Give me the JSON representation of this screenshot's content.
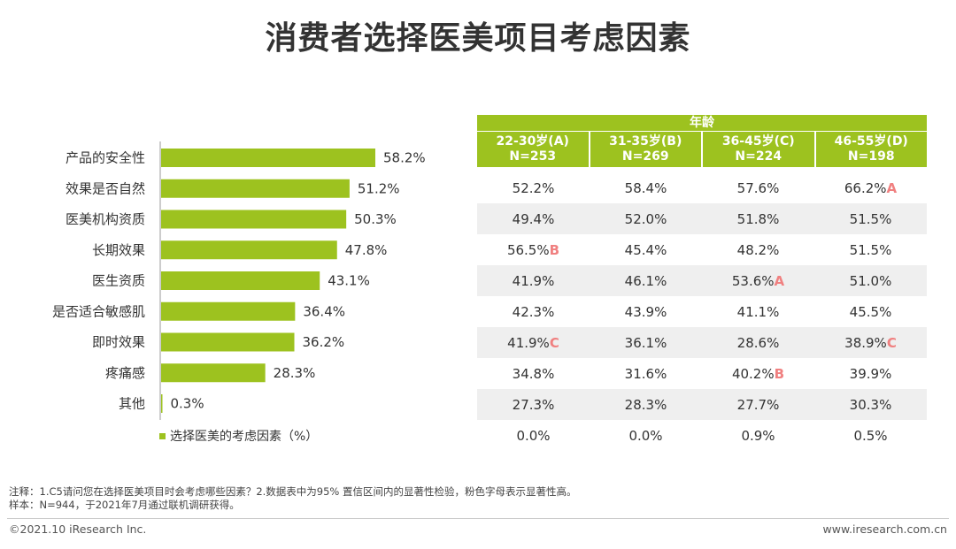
{
  "title": "消费者选择医美项目考虑因素",
  "chart_data": {
    "type": "bar",
    "orientation": "horizontal",
    "title": "消费者选择医美项目考虑因素",
    "categories": [
      "产品的安全性",
      "效果是否自然",
      "医美机构资质",
      "长期效果",
      "医生资质",
      "是否适合敏感肌",
      "即时效果",
      "疼痛感",
      "其他"
    ],
    "series": [
      {
        "name": "选择医美的考虑因素（%）",
        "values": [
          58.2,
          51.2,
          50.3,
          47.8,
          43.1,
          36.4,
          36.2,
          28.3,
          0.3
        ],
        "color": "#9dc21f"
      }
    ],
    "value_labels": [
      "58.2%",
      "51.2%",
      "50.3%",
      "47.8%",
      "43.1%",
      "36.4%",
      "36.2%",
      "28.3%",
      "0.3%"
    ],
    "xlim": [
      0,
      100
    ],
    "legend": "选择医美的考虑因素（%）",
    "legend_position": "bottom-left"
  },
  "table": {
    "header": "年龄",
    "groups": [
      {
        "range": "22-30岁(A)",
        "n": "N=253"
      },
      {
        "range": "31-35岁(B)",
        "n": "N=269"
      },
      {
        "range": "36-45岁(C)",
        "n": "N=224"
      },
      {
        "range": "46-55岁(D)",
        "n": "N=198"
      }
    ],
    "rows": [
      [
        {
          "v": "52.2%",
          "m": ""
        },
        {
          "v": "58.4%",
          "m": ""
        },
        {
          "v": "57.6%",
          "m": ""
        },
        {
          "v": "66.2%",
          "m": "A"
        }
      ],
      [
        {
          "v": "49.4%",
          "m": ""
        },
        {
          "v": "52.0%",
          "m": ""
        },
        {
          "v": "51.8%",
          "m": ""
        },
        {
          "v": "51.5%",
          "m": ""
        }
      ],
      [
        {
          "v": "56.5%",
          "m": "B"
        },
        {
          "v": "45.4%",
          "m": ""
        },
        {
          "v": "48.2%",
          "m": ""
        },
        {
          "v": "51.5%",
          "m": ""
        }
      ],
      [
        {
          "v": "41.9%",
          "m": ""
        },
        {
          "v": "46.1%",
          "m": ""
        },
        {
          "v": "53.6%",
          "m": "A"
        },
        {
          "v": "51.0%",
          "m": ""
        }
      ],
      [
        {
          "v": "42.3%",
          "m": ""
        },
        {
          "v": "43.9%",
          "m": ""
        },
        {
          "v": "41.1%",
          "m": ""
        },
        {
          "v": "45.5%",
          "m": ""
        }
      ],
      [
        {
          "v": "41.9%",
          "m": "C"
        },
        {
          "v": "36.1%",
          "m": ""
        },
        {
          "v": "28.6%",
          "m": ""
        },
        {
          "v": "38.9%",
          "m": "C"
        }
      ],
      [
        {
          "v": "34.8%",
          "m": ""
        },
        {
          "v": "31.6%",
          "m": ""
        },
        {
          "v": "40.2%",
          "m": "B"
        },
        {
          "v": "39.9%",
          "m": ""
        }
      ],
      [
        {
          "v": "27.3%",
          "m": ""
        },
        {
          "v": "28.3%",
          "m": ""
        },
        {
          "v": "27.7%",
          "m": ""
        },
        {
          "v": "30.3%",
          "m": ""
        }
      ],
      [
        {
          "v": "0.0%",
          "m": ""
        },
        {
          "v": "0.0%",
          "m": ""
        },
        {
          "v": "0.9%",
          "m": ""
        },
        {
          "v": "0.5%",
          "m": ""
        }
      ]
    ]
  },
  "notes": {
    "line1": "注释：1.C5请问您在选择医美项目时会考虑哪些因素？2.数据表中为95% 置信区间内的显著性检验，粉色字母表示显著性高。",
    "line2": "样本：N=944，于2021年7月通过联机调研获得。"
  },
  "footer": {
    "copyright": "©2021.10 iResearch Inc.",
    "website": "www.iresearch.com.cn"
  },
  "colors": {
    "bar": "#9dc21f",
    "header_bg": "#9dc21f",
    "significance_mark": "#f08080",
    "row_shade": "#efefef"
  }
}
